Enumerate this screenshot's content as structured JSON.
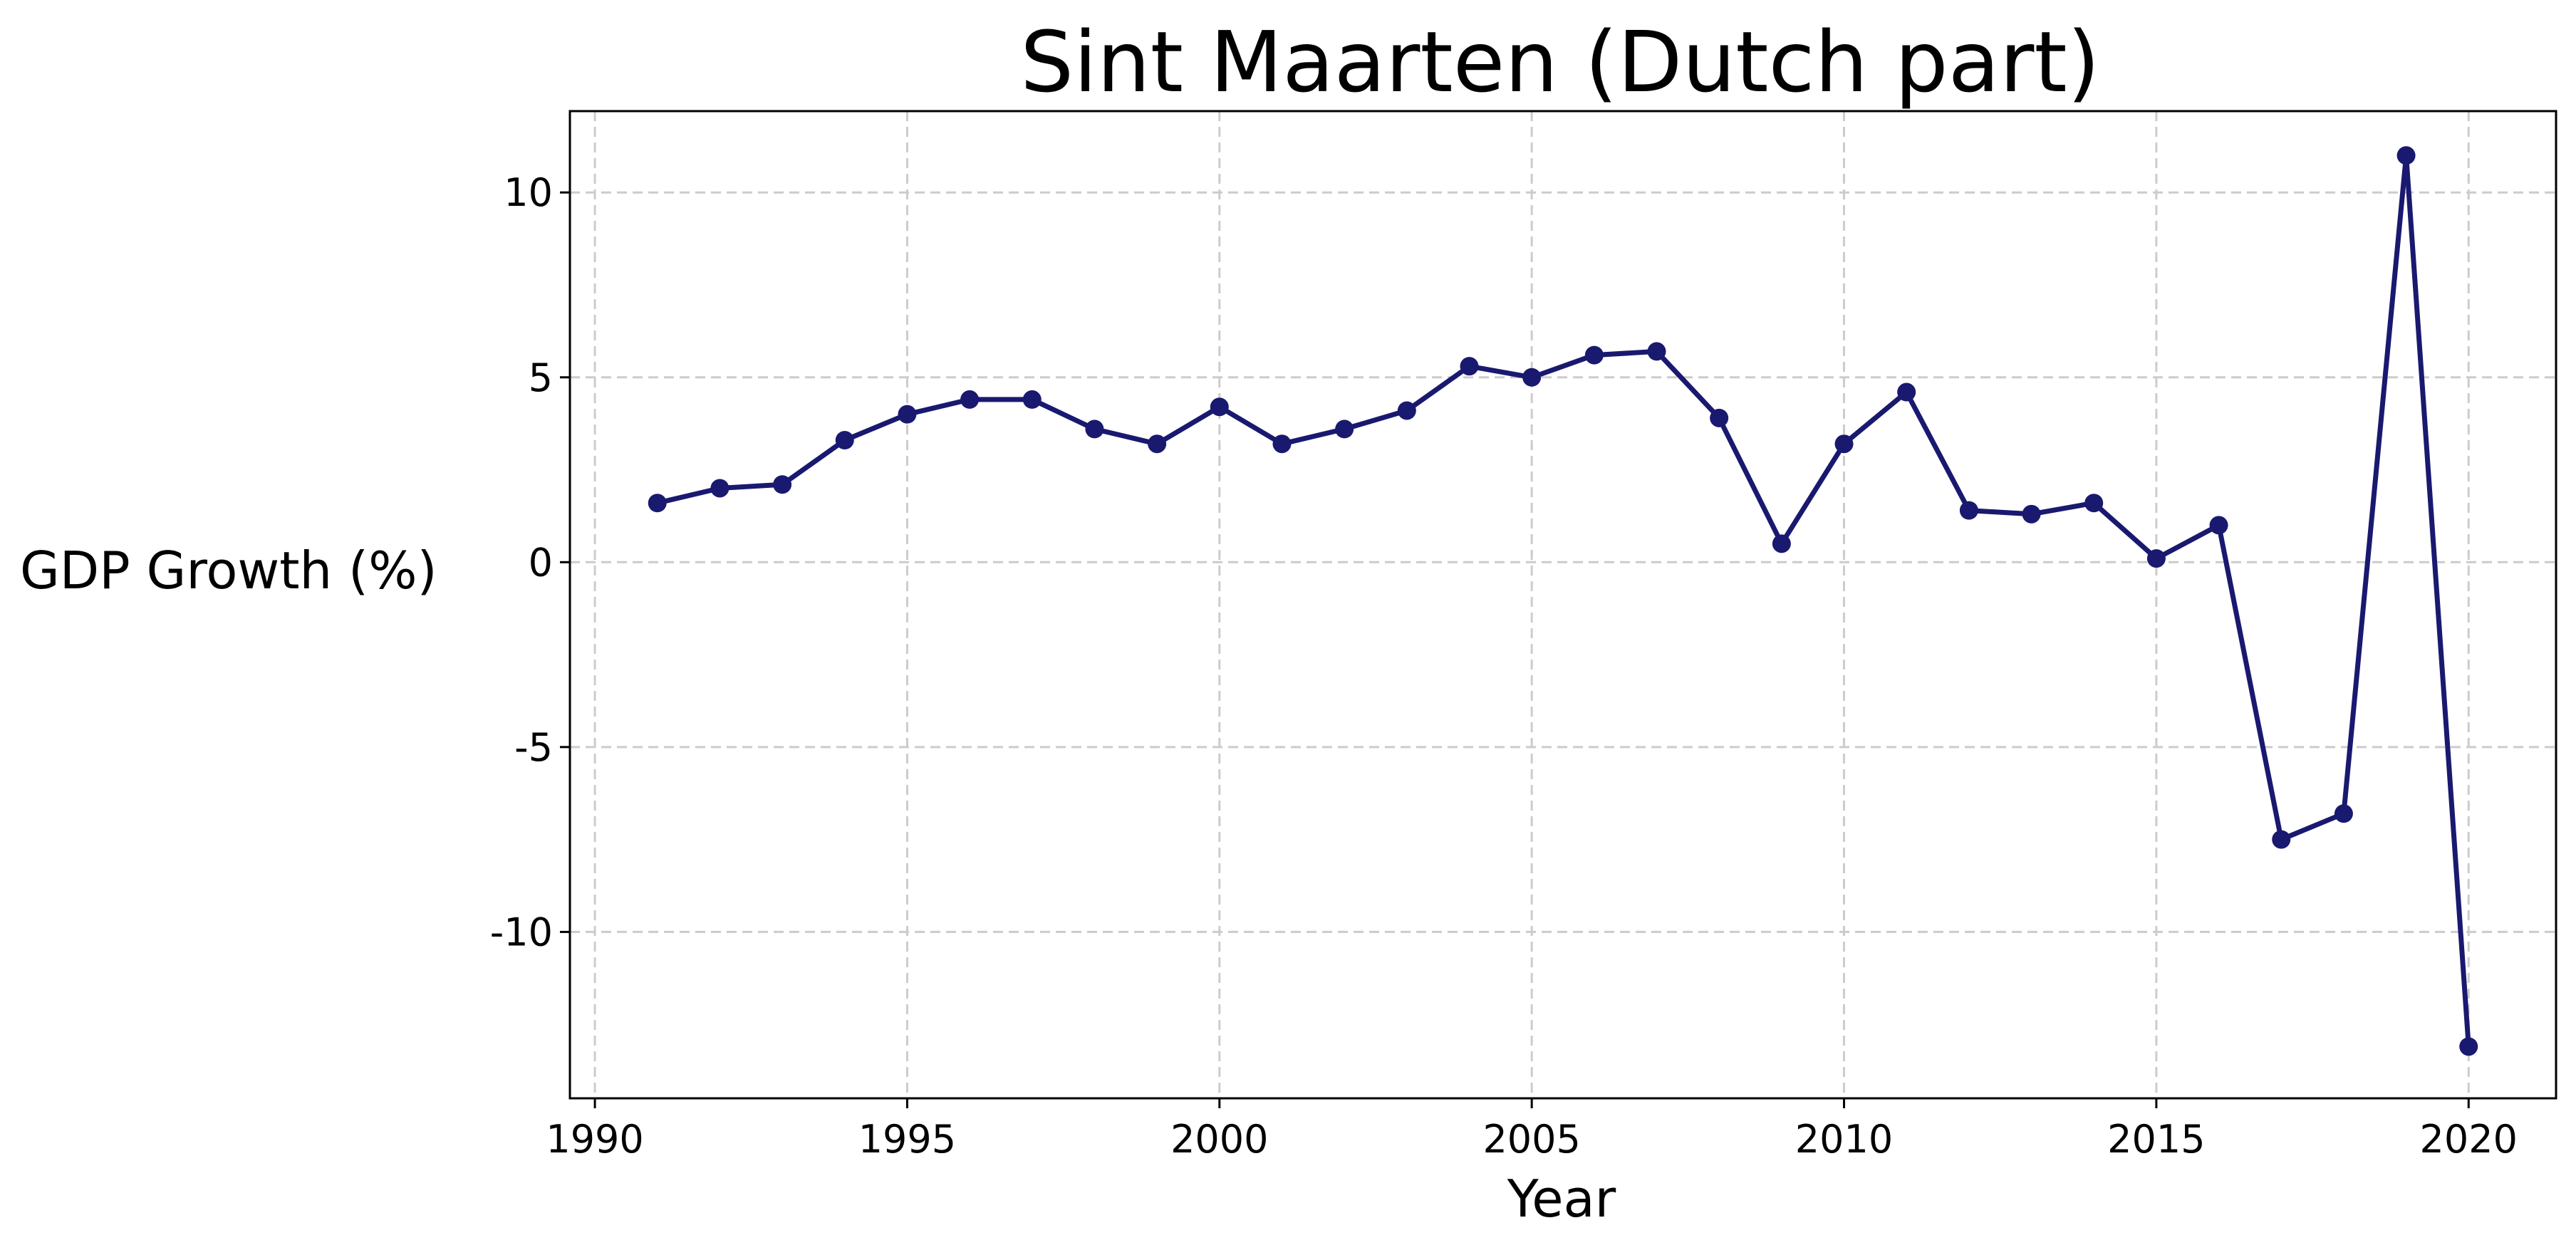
{
  "chart_data": {
    "type": "line",
    "title": "Sint Maarten (Dutch part)",
    "xlabel": "Year",
    "ylabel": "GDP Growth (%)",
    "xlim": [
      1989.6,
      2021.4
    ],
    "ylim": [
      -14.5,
      12.2
    ],
    "xticks": [
      1990,
      1995,
      2000,
      2005,
      2010,
      2015,
      2020
    ],
    "yticks": [
      -10,
      -5,
      0,
      5,
      10
    ],
    "ytick_labels": [
      "-10",
      "-5",
      "0",
      "5",
      "10"
    ],
    "grid": true,
    "legend": "none",
    "colors": {
      "line": "#191970",
      "grid": "#cccccc"
    },
    "x": [
      1991,
      1992,
      1993,
      1994,
      1995,
      1996,
      1997,
      1998,
      1999,
      2000,
      2001,
      2002,
      2003,
      2004,
      2005,
      2006,
      2007,
      2008,
      2009,
      2010,
      2011,
      2012,
      2013,
      2014,
      2015,
      2016,
      2017,
      2018,
      2019,
      2020
    ],
    "series": [
      {
        "values": [
          1.6,
          2.0,
          2.1,
          3.3,
          4.0,
          4.4,
          4.4,
          3.6,
          3.2,
          4.2,
          3.2,
          3.6,
          4.1,
          5.3,
          5.0,
          5.6,
          5.7,
          3.9,
          0.5,
          3.2,
          4.6,
          1.4,
          1.3,
          1.6,
          0.1,
          1.0,
          -7.5,
          -6.8,
          11.0,
          -13.1
        ]
      }
    ]
  }
}
